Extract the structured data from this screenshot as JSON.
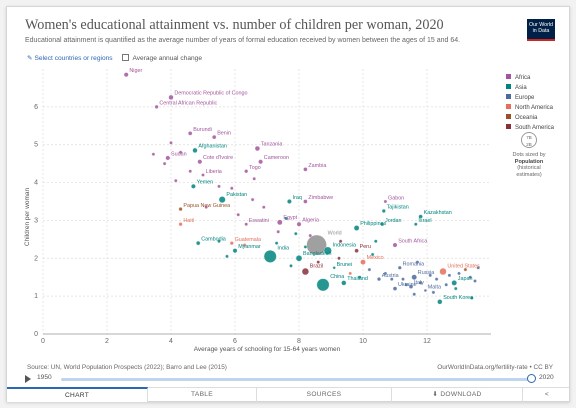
{
  "header": {
    "title": "Women's educational attainment vs. number of children per woman, 2020",
    "subtitle": "Educational attainment is quantified as the average number of years of formal education received by women between the ages of 15 and 64.",
    "logo_line1": "Our World",
    "logo_line2": "in Data"
  },
  "controls": {
    "select_label": "Select countries or regions",
    "average_label": "Average annual change"
  },
  "legend": {
    "items": [
      {
        "label": "Africa",
        "color": "#a2559c"
      },
      {
        "label": "Asia",
        "color": "#00847e"
      },
      {
        "label": "Europe",
        "color": "#4c6a9c"
      },
      {
        "label": "North America",
        "color": "#e56e5a"
      },
      {
        "label": "Oceania",
        "color": "#9a5129"
      },
      {
        "label": "South America",
        "color": "#883039"
      }
    ],
    "size_values": [
      "7B",
      "2B"
    ],
    "size_caption": "Dots sized by",
    "size_bold_1": "Population",
    "size_bold_2": "(historical",
    "size_bold_3": "estimates)"
  },
  "footer": {
    "source": "Source: UN, World Population Prospects (2022); Barro and Lee (2015)",
    "credit": "OurWorldInData.org/fertility-rate • CC BY",
    "timeline_start": "1950",
    "timeline_end": "2020"
  },
  "tabs": [
    {
      "label": "CHART",
      "active": true
    },
    {
      "label": "TABLE",
      "active": false
    },
    {
      "label": "SOURCES",
      "active": false
    },
    {
      "label": "DOWNLOAD",
      "active": false
    },
    {
      "label": "<",
      "active": false
    }
  ],
  "chart_data": {
    "type": "scatter",
    "xlabel": "Average years of schooling for 15-64 years women",
    "ylabel": "Children per woman",
    "xlim": [
      0,
      14
    ],
    "ylim": [
      0,
      7
    ],
    "xticks": [
      0,
      2,
      4,
      6,
      8,
      10,
      12
    ],
    "yticks": [
      0,
      1,
      2,
      3,
      4,
      5,
      6
    ],
    "grid": true,
    "legend_position": "right",
    "colors": {
      "Africa": "#a2559c",
      "Asia": "#00847e",
      "Europe": "#4c6a9c",
      "North America": "#e56e5a",
      "Oceania": "#9a5129",
      "South America": "#883039"
    },
    "points": [
      {
        "label": "Niger",
        "x": 2.6,
        "y": 6.85,
        "region": "Africa",
        "size": 2.2
      },
      {
        "label": "Democratic Republic of Congo",
        "x": 4.0,
        "y": 6.25,
        "region": "Africa",
        "size": 2.4
      },
      {
        "label": "Central African Republic",
        "x": 3.55,
        "y": 6.0,
        "region": "Africa",
        "size": 1.8
      },
      {
        "label": "Burundi",
        "x": 4.6,
        "y": 5.3,
        "region": "Africa",
        "size": 2
      },
      {
        "label": "Benin",
        "x": 5.35,
        "y": 5.2,
        "region": "Africa",
        "size": 2
      },
      {
        "label": "Afghanistan",
        "x": 4.75,
        "y": 4.85,
        "region": "Asia",
        "size": 2.4
      },
      {
        "label": "Tanzania",
        "x": 6.7,
        "y": 4.9,
        "region": "Africa",
        "size": 2.4
      },
      {
        "label": "Sudan",
        "x": 3.9,
        "y": 4.65,
        "region": "Africa",
        "size": 2.2
      },
      {
        "label": "Cote d'Ivoire",
        "x": 4.9,
        "y": 4.55,
        "region": "Africa",
        "size": 2.2
      },
      {
        "label": "Cameroon",
        "x": 6.8,
        "y": 4.55,
        "region": "Africa",
        "size": 2.2
      },
      {
        "label": "Zambia",
        "x": 8.2,
        "y": 4.35,
        "region": "Africa",
        "size": 2
      },
      {
        "label": "Togo",
        "x": 6.35,
        "y": 4.3,
        "region": "Africa",
        "size": 1.8
      },
      {
        "label": "Liberia",
        "x": 5.0,
        "y": 4.2,
        "region": "Africa",
        "size": 1.6
      },
      {
        "label": "Yemen",
        "x": 4.7,
        "y": 3.9,
        "region": "Asia",
        "size": 2.2
      },
      {
        "label": "Pakistan",
        "x": 5.6,
        "y": 3.55,
        "region": "Asia",
        "size": 3.2
      },
      {
        "label": "Iraq",
        "x": 7.7,
        "y": 3.5,
        "region": "Asia",
        "size": 2.2
      },
      {
        "label": "Zimbabwe",
        "x": 8.2,
        "y": 3.5,
        "region": "Africa",
        "size": 2
      },
      {
        "label": "Gabon",
        "x": 10.7,
        "y": 3.5,
        "region": "Africa",
        "size": 1.6
      },
      {
        "label": "Papua New Guinea",
        "x": 4.3,
        "y": 3.3,
        "region": "Oceania",
        "size": 1.8
      },
      {
        "label": "Tajikistan",
        "x": 10.65,
        "y": 3.25,
        "region": "Asia",
        "size": 1.8
      },
      {
        "label": "Kazakhstan",
        "x": 11.8,
        "y": 3.1,
        "region": "Asia",
        "size": 2
      },
      {
        "label": "Haiti",
        "x": 4.3,
        "y": 2.9,
        "region": "North America",
        "size": 1.8
      },
      {
        "label": "Eswatini",
        "x": 6.35,
        "y": 2.9,
        "region": "Africa",
        "size": 1.6
      },
      {
        "label": "Egypt",
        "x": 7.4,
        "y": 2.95,
        "region": "Africa",
        "size": 2.6
      },
      {
        "label": "Algeria",
        "x": 8.0,
        "y": 2.9,
        "region": "Africa",
        "size": 2.2
      },
      {
        "label": "Jordan",
        "x": 10.6,
        "y": 2.9,
        "region": "Asia",
        "size": 1.8
      },
      {
        "label": "Philippines",
        "x": 9.8,
        "y": 2.8,
        "region": "Asia",
        "size": 2.6
      },
      {
        "label": "Guatemala",
        "x": 5.9,
        "y": 2.4,
        "region": "North America",
        "size": 1.8
      },
      {
        "label": "South Africa",
        "x": 11.0,
        "y": 2.35,
        "region": "Africa",
        "size": 2.2
      },
      {
        "label": "Israel",
        "x": 11.65,
        "y": 2.9,
        "region": "Asia",
        "size": 1.6
      },
      {
        "label": "Cambodia",
        "x": 4.85,
        "y": 2.4,
        "region": "Asia",
        "size": 2
      },
      {
        "label": "World",
        "x": 8.55,
        "y": 2.35,
        "region": "",
        "size": 10
      },
      {
        "label": "Indonesia",
        "x": 8.9,
        "y": 2.2,
        "region": "Asia",
        "size": 3.8
      },
      {
        "label": "Peru",
        "x": 9.8,
        "y": 2.2,
        "region": "South America",
        "size": 2
      },
      {
        "label": "Myanmar",
        "x": 6.0,
        "y": 2.2,
        "region": "Asia",
        "size": 2.2
      },
      {
        "label": "India",
        "x": 7.1,
        "y": 2.05,
        "region": "Asia",
        "size": 6.2
      },
      {
        "label": "Bangladesh",
        "x": 8.0,
        "y": 2.0,
        "region": "Asia",
        "size": 3
      },
      {
        "label": "Mexico",
        "x": 10.0,
        "y": 1.9,
        "region": "North America",
        "size": 2.6
      },
      {
        "label": "Brunei",
        "x": 9.1,
        "y": 1.75,
        "region": "Asia",
        "size": 1.4
      },
      {
        "label": "Romania",
        "x": 11.15,
        "y": 1.75,
        "region": "Europe",
        "size": 1.8
      },
      {
        "label": "Brazil",
        "x": 8.2,
        "y": 1.65,
        "region": "South America",
        "size": 3.4
      },
      {
        "label": "United States",
        "x": 12.5,
        "y": 1.65,
        "region": "North America",
        "size": 3.4
      },
      {
        "label": "Austria",
        "x": 10.5,
        "y": 1.45,
        "region": "Europe",
        "size": 1.8
      },
      {
        "label": "Russia",
        "x": 11.6,
        "y": 1.5,
        "region": "Europe",
        "size": 2.6
      },
      {
        "label": "Thailand",
        "x": 9.4,
        "y": 1.35,
        "region": "Asia",
        "size": 2.4
      },
      {
        "label": "Japan",
        "x": 12.85,
        "y": 1.35,
        "region": "Asia",
        "size": 2.6
      },
      {
        "label": "China",
        "x": 8.75,
        "y": 1.3,
        "region": "Asia",
        "size": 6.2
      },
      {
        "label": "Ukraine",
        "x": 11.0,
        "y": 1.2,
        "region": "Europe",
        "size": 2
      },
      {
        "label": "Italy",
        "x": 11.5,
        "y": 1.25,
        "region": "Europe",
        "size": 2
      },
      {
        "label": "Malta",
        "x": 11.95,
        "y": 1.15,
        "region": "Europe",
        "size": 1.4
      },
      {
        "label": "South Korea",
        "x": 12.4,
        "y": 0.85,
        "region": "Asia",
        "size": 2.4
      },
      {
        "label": "",
        "x": 3.45,
        "y": 4.75,
        "region": "Africa",
        "size": 1.6
      },
      {
        "label": "",
        "x": 3.8,
        "y": 4.5,
        "region": "Africa",
        "size": 1.6
      },
      {
        "label": "",
        "x": 4.15,
        "y": 4.05,
        "region": "Africa",
        "size": 1.6
      },
      {
        "label": "",
        "x": 4.3,
        "y": 4.8,
        "region": "Africa",
        "size": 1.6
      },
      {
        "label": "",
        "x": 4.0,
        "y": 5.05,
        "region": "Africa",
        "size": 1.6
      },
      {
        "label": "",
        "x": 5.5,
        "y": 3.9,
        "region": "Africa",
        "size": 1.6
      },
      {
        "label": "",
        "x": 5.1,
        "y": 3.35,
        "region": "Africa",
        "size": 1.6
      },
      {
        "label": "",
        "x": 6.1,
        "y": 3.15,
        "region": "Africa",
        "size": 1.6
      },
      {
        "label": "",
        "x": 6.55,
        "y": 3.55,
        "region": "Africa",
        "size": 1.6
      },
      {
        "label": "",
        "x": 7.6,
        "y": 3.05,
        "region": "Asia",
        "size": 1.6
      },
      {
        "label": "",
        "x": 7.35,
        "y": 2.7,
        "region": "Africa",
        "size": 1.6
      },
      {
        "label": "",
        "x": 7.9,
        "y": 2.65,
        "region": "Asia",
        "size": 1.6
      },
      {
        "label": "",
        "x": 8.35,
        "y": 2.6,
        "region": "Africa",
        "size": 1.6
      },
      {
        "label": "",
        "x": 7.3,
        "y": 2.4,
        "region": "Asia",
        "size": 1.6
      },
      {
        "label": "",
        "x": 6.3,
        "y": 2.35,
        "region": "North America",
        "size": 1.6
      },
      {
        "label": "",
        "x": 5.5,
        "y": 2.45,
        "region": "Asia",
        "size": 1.6
      },
      {
        "label": "",
        "x": 5.75,
        "y": 2.05,
        "region": "Asia",
        "size": 1.6
      },
      {
        "label": "",
        "x": 7.75,
        "y": 1.8,
        "region": "Asia",
        "size": 1.6
      },
      {
        "label": "",
        "x": 8.6,
        "y": 1.9,
        "region": "South America",
        "size": 1.6
      },
      {
        "label": "",
        "x": 9.25,
        "y": 2.0,
        "region": "South America",
        "size": 1.6
      },
      {
        "label": "",
        "x": 9.6,
        "y": 1.6,
        "region": "North America",
        "size": 1.6
      },
      {
        "label": "",
        "x": 10.3,
        "y": 2.1,
        "region": "Asia",
        "size": 1.6
      },
      {
        "label": "",
        "x": 10.2,
        "y": 1.7,
        "region": "Europe",
        "size": 1.6
      },
      {
        "label": "",
        "x": 10.7,
        "y": 1.6,
        "region": "Europe",
        "size": 1.6
      },
      {
        "label": "",
        "x": 10.9,
        "y": 1.45,
        "region": "Europe",
        "size": 1.6
      },
      {
        "label": "",
        "x": 11.25,
        "y": 1.45,
        "region": "Europe",
        "size": 1.6
      },
      {
        "label": "",
        "x": 11.35,
        "y": 1.3,
        "region": "Europe",
        "size": 1.6
      },
      {
        "label": "",
        "x": 11.8,
        "y": 1.35,
        "region": "Europe",
        "size": 1.6
      },
      {
        "label": "",
        "x": 12.1,
        "y": 1.55,
        "region": "Europe",
        "size": 1.6
      },
      {
        "label": "",
        "x": 12.3,
        "y": 1.45,
        "region": "Europe",
        "size": 1.6
      },
      {
        "label": "",
        "x": 12.7,
        "y": 1.55,
        "region": "Europe",
        "size": 1.6
      },
      {
        "label": "",
        "x": 13.0,
        "y": 1.6,
        "region": "Europe",
        "size": 1.6
      },
      {
        "label": "",
        "x": 13.2,
        "y": 1.7,
        "region": "Oceania",
        "size": 1.6
      },
      {
        "label": "",
        "x": 13.35,
        "y": 1.5,
        "region": "Europe",
        "size": 1.6
      },
      {
        "label": "",
        "x": 12.9,
        "y": 1.2,
        "region": "Asia",
        "size": 1.6
      },
      {
        "label": "",
        "x": 13.4,
        "y": 0.95,
        "region": "Asia",
        "size": 1.6
      },
      {
        "label": "",
        "x": 12.2,
        "y": 1.1,
        "region": "Europe",
        "size": 1.6
      },
      {
        "label": "",
        "x": 11.6,
        "y": 1.05,
        "region": "Europe",
        "size": 1.6
      },
      {
        "label": "",
        "x": 9.9,
        "y": 1.5,
        "region": "Asia",
        "size": 1.6
      },
      {
        "label": "",
        "x": 11.7,
        "y": 1.9,
        "region": "Europe",
        "size": 1.6
      },
      {
        "label": "",
        "x": 10.4,
        "y": 2.45,
        "region": "Asia",
        "size": 1.6
      },
      {
        "label": "",
        "x": 9.3,
        "y": 2.45,
        "region": "South America",
        "size": 1.6
      },
      {
        "label": "",
        "x": 8.2,
        "y": 2.3,
        "region": "Asia",
        "size": 1.6
      },
      {
        "label": "",
        "x": 13.6,
        "y": 1.75,
        "region": "Europe",
        "size": 1.6
      },
      {
        "label": "",
        "x": 13.5,
        "y": 1.4,
        "region": "Europe",
        "size": 1.6
      },
      {
        "label": "",
        "x": 12.6,
        "y": 1.3,
        "region": "Europe",
        "size": 1.6
      },
      {
        "label": "",
        "x": 6.9,
        "y": 3.35,
        "region": "Africa",
        "size": 1.6
      },
      {
        "label": "",
        "x": 5.9,
        "y": 3.85,
        "region": "Africa",
        "size": 1.6
      },
      {
        "label": "",
        "x": 6.6,
        "y": 4.1,
        "region": "Africa",
        "size": 1.6
      },
      {
        "label": "",
        "x": 4.6,
        "y": 4.3,
        "region": "Africa",
        "size": 1.6
      }
    ]
  }
}
